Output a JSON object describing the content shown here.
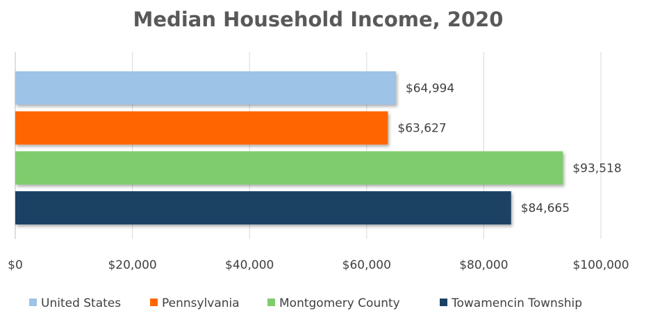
{
  "chart_data": {
    "type": "bar",
    "orientation": "horizontal",
    "title": "Median Household Income, 2020",
    "series": [
      {
        "name": "United States",
        "color": "#9dc3e6",
        "values": [
          64994
        ],
        "value_labels": [
          "$64,994"
        ]
      },
      {
        "name": "Pennsylvania",
        "color": "#ff6600",
        "values": [
          63627
        ],
        "value_labels": [
          "$63,627"
        ]
      },
      {
        "name": "Montgomery County",
        "color": "#7fcc6e",
        "values": [
          93518
        ],
        "value_labels": [
          "$93,518"
        ]
      },
      {
        "name": "Towamencin Township",
        "color": "#1b4263",
        "values": [
          84665
        ],
        "value_labels": [
          "$84,665"
        ]
      }
    ],
    "xlim": [
      0,
      100000
    ],
    "xticks": [
      {
        "value": 0,
        "label": "$0"
      },
      {
        "value": 20000,
        "label": "$20,000"
      },
      {
        "value": 40000,
        "label": "$40,000"
      },
      {
        "value": 60000,
        "label": "$60,000"
      },
      {
        "value": 80000,
        "label": "$80,000"
      },
      {
        "value": 100000,
        "label": "$100,000"
      }
    ],
    "grid": true,
    "legend": "bottom"
  }
}
